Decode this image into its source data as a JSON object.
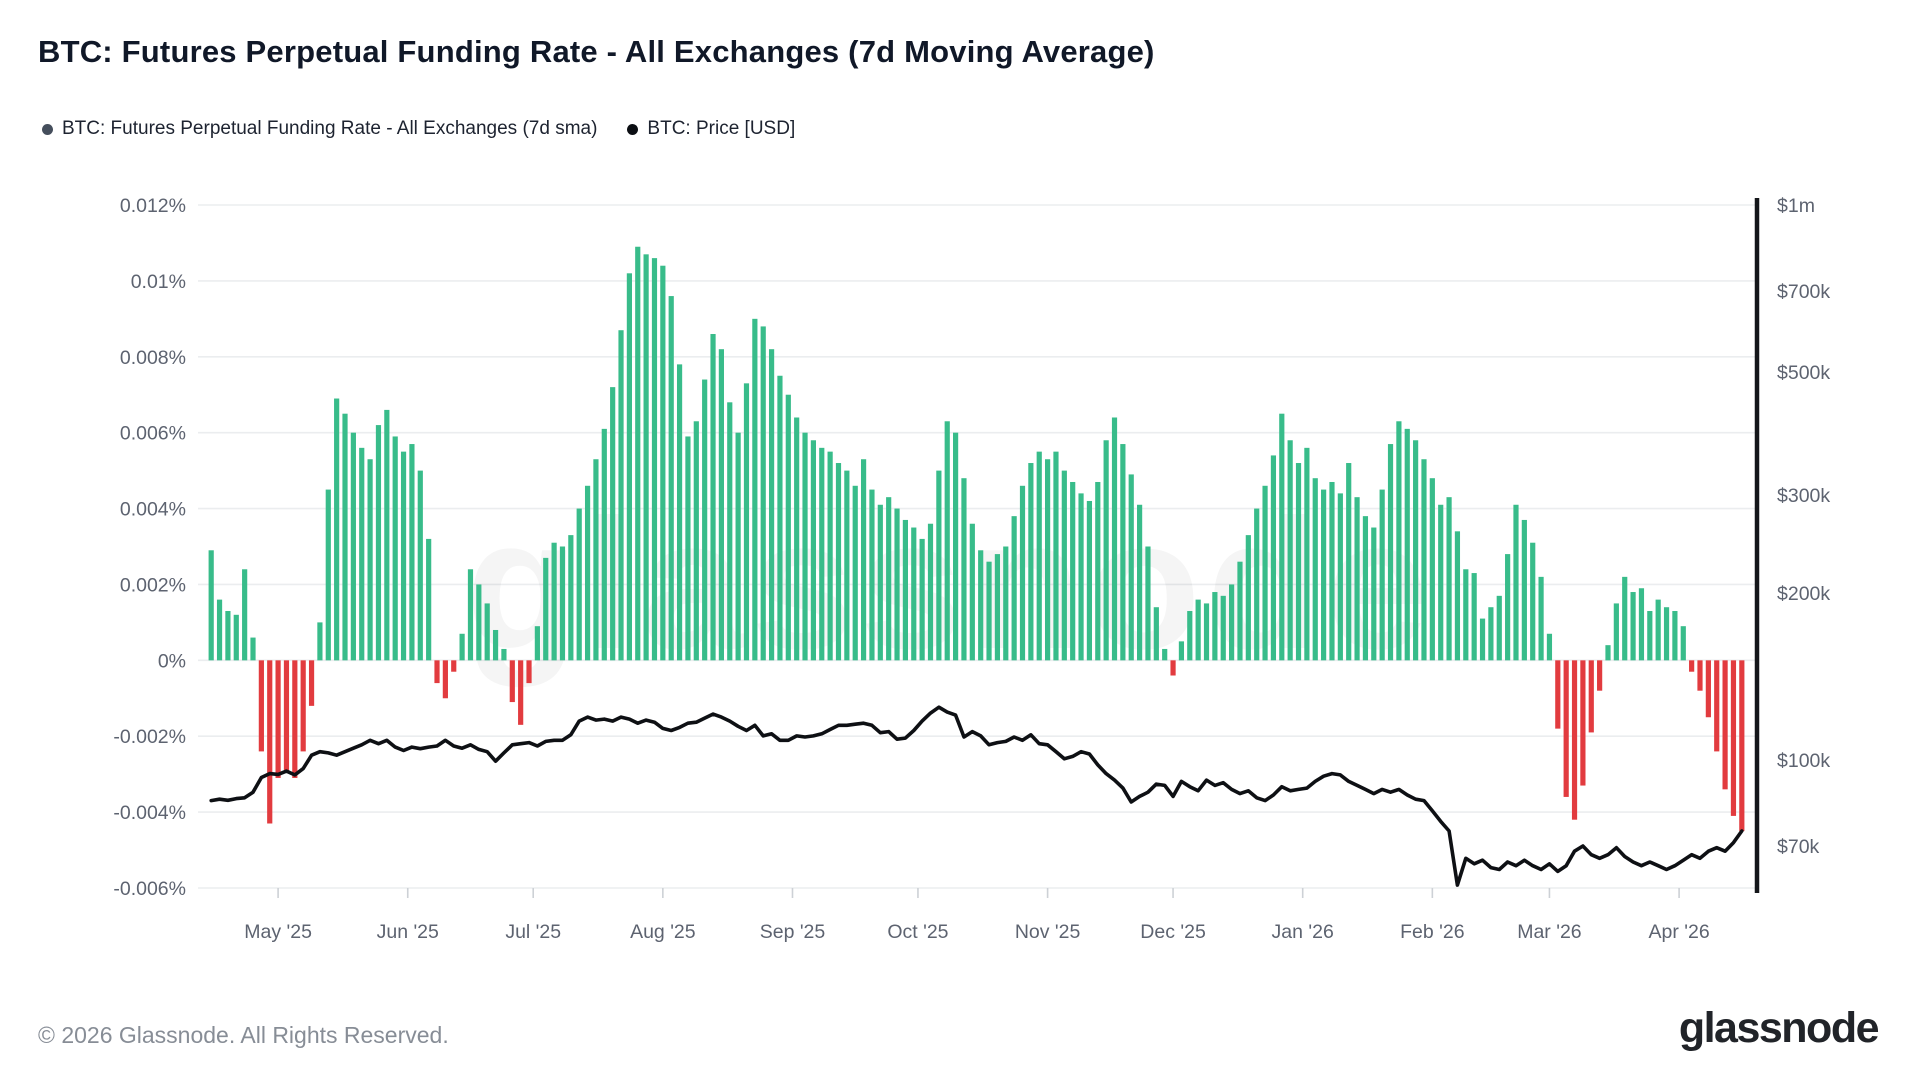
{
  "header": {
    "title": "BTC: Futures Perpetual Funding Rate - All Exchanges (7d Moving Average)"
  },
  "legend": {
    "items": [
      {
        "label": "BTC: Futures Perpetual Funding Rate - All Exchanges (7d sma)",
        "color": "#454e5c",
        "marker": "dot-icon"
      },
      {
        "label": "BTC: Price [USD]",
        "color": "#0b0e13",
        "marker": "dot-icon"
      }
    ]
  },
  "footer": {
    "copyright": "© 2026 Glassnode. All Rights Reserved.",
    "brand_wordmark": "glassnode"
  },
  "watermark": "glassnode",
  "chart_data": {
    "type": "bar+line",
    "title": "BTC: Futures Perpetual Funding Rate - All Exchanges (7d Moving Average)",
    "x_start_date": "2025-04-15",
    "x_step_days": 2,
    "x_tick_labels": [
      "May '25",
      "Jun '25",
      "Jul '25",
      "Aug '25",
      "Sep '25",
      "Oct '25",
      "Nov '25",
      "Dec '25",
      "Jan '26",
      "Feb '26",
      "Mar '26",
      "Apr '26"
    ],
    "left_axis": {
      "unit": "%",
      "min": -0.006,
      "max": 0.012,
      "tick_labels": [
        "0.012%",
        "0.01%",
        "0.008%",
        "0.006%",
        "0.004%",
        "0.002%",
        "0%",
        "-0.002%",
        "-0.004%",
        "-0.006%"
      ],
      "tick_values": [
        0.012,
        0.01,
        0.008,
        0.006,
        0.004,
        0.002,
        0,
        -0.002,
        -0.004,
        -0.006
      ],
      "grid": true
    },
    "right_axis": {
      "unit": "USD",
      "scale": "log",
      "tick_labels": [
        "$1m",
        "$700k",
        "$500k",
        "$300k",
        "$200k",
        "$100k",
        "$70k"
      ],
      "tick_values": [
        1000000,
        700000,
        500000,
        300000,
        200000,
        100000,
        70000
      ],
      "top_value": 1000000
    },
    "series": [
      {
        "name": "BTC: Futures Perpetual Funding Rate - All Exchanges (7d sma)",
        "type": "bar",
        "axis": "left",
        "pos_color": "#38bc8a",
        "neg_color": "#e23b3f",
        "values": [
          0.0029,
          0.0016,
          0.0013,
          0.0012,
          0.0024,
          0.0006,
          -0.0024,
          -0.0043,
          -0.0031,
          -0.0029,
          -0.0031,
          -0.0024,
          -0.0012,
          0.001,
          0.0045,
          0.0069,
          0.0065,
          0.006,
          0.0056,
          0.0053,
          0.0062,
          0.0066,
          0.0059,
          0.0055,
          0.0057,
          0.005,
          0.0032,
          -0.0006,
          -0.001,
          -0.0003,
          0.0007,
          0.0024,
          0.002,
          0.0015,
          0.0008,
          0.0003,
          -0.0011,
          -0.0017,
          -0.0006,
          0.0009,
          0.0027,
          0.0031,
          0.003,
          0.0033,
          0.004,
          0.0046,
          0.0053,
          0.0061,
          0.0072,
          0.0087,
          0.0102,
          0.0109,
          0.0107,
          0.0106,
          0.0104,
          0.0096,
          0.0078,
          0.0059,
          0.0063,
          0.0074,
          0.0086,
          0.0082,
          0.0068,
          0.006,
          0.0073,
          0.009,
          0.0088,
          0.0082,
          0.0075,
          0.007,
          0.0064,
          0.006,
          0.0058,
          0.0056,
          0.0055,
          0.0052,
          0.005,
          0.0046,
          0.0053,
          0.0045,
          0.0041,
          0.0043,
          0.004,
          0.0037,
          0.0035,
          0.0032,
          0.0036,
          0.005,
          0.0063,
          0.006,
          0.0048,
          0.0036,
          0.0029,
          0.0026,
          0.0028,
          0.003,
          0.0038,
          0.0046,
          0.0052,
          0.0055,
          0.0053,
          0.0055,
          0.005,
          0.0047,
          0.0044,
          0.0042,
          0.0047,
          0.0058,
          0.0064,
          0.0057,
          0.0049,
          0.0041,
          0.003,
          0.0014,
          0.0003,
          -0.0004,
          0.0005,
          0.0013,
          0.0016,
          0.0015,
          0.0018,
          0.0017,
          0.002,
          0.0026,
          0.0033,
          0.004,
          0.0046,
          0.0054,
          0.0065,
          0.0058,
          0.0052,
          0.0056,
          0.0048,
          0.0045,
          0.0047,
          0.0044,
          0.0052,
          0.0043,
          0.0038,
          0.0035,
          0.0045,
          0.0057,
          0.0063,
          0.0061,
          0.0058,
          0.0053,
          0.0048,
          0.0041,
          0.0043,
          0.0034,
          0.0024,
          0.0023,
          0.0011,
          0.0014,
          0.0017,
          0.0028,
          0.0041,
          0.0037,
          0.0031,
          0.0022,
          0.0007,
          -0.0018,
          -0.0036,
          -0.0042,
          -0.0033,
          -0.0019,
          -0.0008,
          0.0004,
          0.0015,
          0.0022,
          0.0018,
          0.0019,
          0.0013,
          0.0016,
          0.0014,
          0.0013,
          0.0009,
          -0.0003,
          -0.0008,
          -0.0015,
          -0.0024,
          -0.0034,
          -0.0041,
          -0.0045
        ]
      },
      {
        "name": "BTC: Price [USD]",
        "type": "line",
        "axis": "right",
        "color": "#0e1014",
        "values": [
          84500,
          85000,
          84600,
          85200,
          85500,
          87500,
          93000,
          94500,
          94200,
          95500,
          94000,
          96500,
          102000,
          103500,
          103000,
          102000,
          103500,
          105000,
          106500,
          108500,
          107000,
          108500,
          105500,
          104000,
          105500,
          104800,
          105500,
          106000,
          108500,
          106000,
          105000,
          106500,
          104500,
          103500,
          99500,
          103000,
          106500,
          107000,
          107500,
          106000,
          108000,
          108500,
          108500,
          111000,
          117500,
          119500,
          118000,
          118500,
          117500,
          119500,
          118500,
          116500,
          118000,
          117000,
          114000,
          113000,
          114500,
          116500,
          117000,
          119000,
          121000,
          119500,
          117500,
          115000,
          113000,
          115500,
          110500,
          111500,
          108500,
          108500,
          110500,
          110000,
          110500,
          111500,
          113500,
          115500,
          115500,
          116000,
          116500,
          115500,
          112000,
          112500,
          109000,
          109500,
          113000,
          117500,
          121500,
          124500,
          122000,
          120500,
          110000,
          112500,
          110500,
          106500,
          107500,
          108000,
          110000,
          108500,
          111000,
          107000,
          106500,
          103500,
          100500,
          101500,
          103500,
          102500,
          98000,
          94500,
          92000,
          89000,
          84000,
          86000,
          87500,
          90500,
          90000,
          86000,
          91500,
          89500,
          88000,
          92000,
          90000,
          91000,
          88500,
          87000,
          88000,
          85500,
          84500,
          86500,
          89500,
          88000,
          88500,
          89000,
          91500,
          93500,
          94500,
          94000,
          91500,
          90000,
          88500,
          87000,
          88500,
          87500,
          88500,
          86500,
          85000,
          84500,
          81000,
          77500,
          74500,
          59500,
          66500,
          65000,
          66000,
          64000,
          63500,
          65500,
          64500,
          66000,
          64500,
          63500,
          65000,
          63000,
          64500,
          68500,
          70000,
          67500,
          66500,
          67500,
          69500,
          67000,
          65500,
          64500,
          65500,
          64500,
          63500,
          64500,
          66000,
          67500,
          66500,
          68500,
          69500,
          68500,
          71000,
          74500
        ]
      }
    ],
    "legend_position": "top-left",
    "grid": true
  }
}
